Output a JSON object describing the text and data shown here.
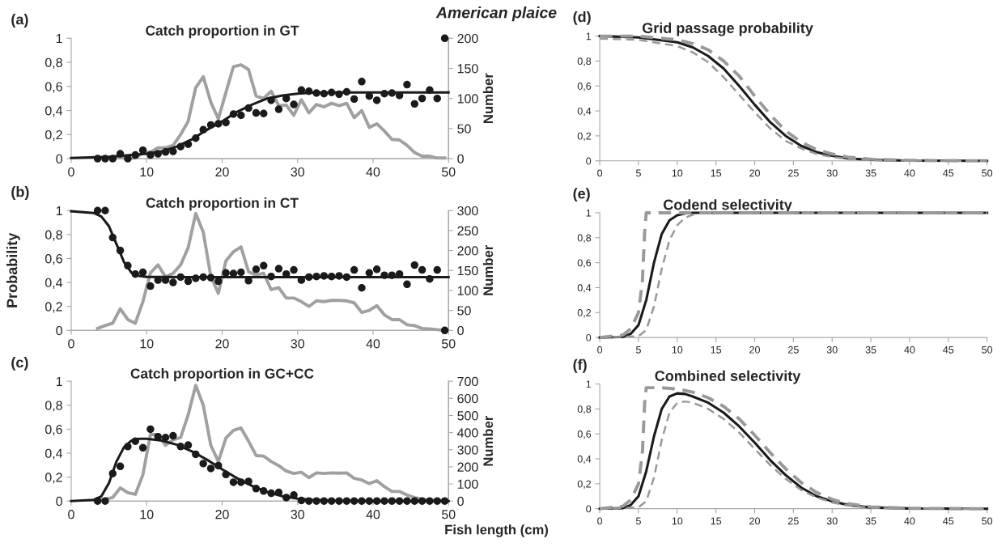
{
  "chart_data": [
    {
      "type": "scatter",
      "title": "Catch proportion in GT",
      "y2label": "Number",
      "annotations": [
        "(a)",
        "American plaice"
      ],
      "xlim": [
        0,
        50
      ],
      "xticks": [
        0,
        10,
        20,
        30,
        40,
        50
      ],
      "ylim": [
        0,
        1
      ],
      "yticks": [
        0,
        {
          "value": 0.2,
          "label": "0,2"
        },
        {
          "value": 0.4,
          "label": "0,4"
        },
        {
          "value": 0.6,
          "label": "0,6"
        },
        {
          "value": 0.8,
          "label": "0,8"
        },
        1
      ],
      "y2lim": [
        0,
        200
      ],
      "y2ticks": [
        0,
        50,
        100,
        150,
        200
      ],
      "grid": false,
      "legend": false,
      "series": [
        {
          "type": "line",
          "axis": "y2",
          "color": "#a0a0a0",
          "x": [
            5.5,
            6.5,
            7.5,
            8.5,
            9.5,
            10.5,
            11.5,
            12.5,
            13.5,
            14.5,
            15.5,
            16.5,
            17.5,
            18.5,
            19.5,
            20.5,
            21.5,
            22.5,
            23.5,
            24.5,
            25.5,
            26.5,
            27.5,
            28.5,
            29.5,
            30.5,
            31.5,
            32.5,
            33.5,
            34.5,
            35.5,
            36.5,
            37.5,
            38.5,
            39.5,
            40.5,
            41.5,
            42.5,
            43.5,
            44.5,
            45.5,
            46.5,
            47.5,
            48.5,
            49.5
          ],
          "values": [
            1,
            2,
            0,
            1,
            10,
            11,
            18,
            18,
            22,
            40,
            62,
            118,
            136,
            94,
            66,
            110,
            153,
            156,
            148,
            104,
            100,
            112,
            88,
            89,
            72,
            98,
            76,
            90,
            86,
            92,
            88,
            92,
            68,
            80,
            52,
            58,
            46,
            32,
            31,
            22,
            10,
            4,
            4,
            1,
            1
          ]
        },
        {
          "type": "line",
          "color": "#1a1a1a",
          "x": [
            0,
            5,
            10,
            12,
            14,
            16,
            18,
            20,
            22,
            24,
            26,
            28,
            30,
            32,
            35,
            40,
            50
          ],
          "values": [
            0.005,
            0.015,
            0.04,
            0.06,
            0.1,
            0.16,
            0.24,
            0.31,
            0.39,
            0.45,
            0.5,
            0.525,
            0.54,
            0.548,
            0.55,
            0.55,
            0.55
          ]
        },
        {
          "type": "scatter",
          "marker": "circle",
          "color": "#1a1a1a",
          "x": [
            3.5,
            4.5,
            5.5,
            6.5,
            7.5,
            8.5,
            9.5,
            10.5,
            11.5,
            12.5,
            13.5,
            14.5,
            15.5,
            16.5,
            17.5,
            18.5,
            19.5,
            20.5,
            21.5,
            22.5,
            23.5,
            24.5,
            25.5,
            26.5,
            27.5,
            28.5,
            29.5,
            30.5,
            31.5,
            32.5,
            33.5,
            34.5,
            35.5,
            36.5,
            37.5,
            38.5,
            39.5,
            40.5,
            41.5,
            42.5,
            43.5,
            44.5,
            45.5,
            46.5,
            47.5,
            48.5,
            49.5
          ],
          "values": [
            0,
            0,
            0,
            0.04,
            0,
            0.03,
            0.07,
            0.03,
            0.04,
            0.055,
            0.06,
            0.1,
            0.12,
            0.17,
            0.24,
            0.28,
            0.29,
            0.3,
            0.37,
            0.36,
            0.42,
            0.38,
            0.375,
            0.485,
            0.41,
            0.5,
            0.45,
            0.57,
            0.56,
            0.545,
            0.54,
            0.55,
            0.535,
            0.555,
            0.495,
            0.64,
            0.52,
            0.485,
            0.54,
            0.545,
            0.525,
            0.615,
            0.455,
            0.5,
            0.57,
            0.5,
            1
          ]
        }
      ]
    },
    {
      "type": "scatter",
      "title": "Catch proportion in CT",
      "ylabel": "Probability",
      "y2label": "Number",
      "annotations": [
        "(b)"
      ],
      "xlim": [
        0,
        50
      ],
      "xticks": [
        0,
        10,
        20,
        30,
        40,
        50
      ],
      "ylim": [
        0,
        1
      ],
      "yticks": [
        0,
        {
          "value": 0.2,
          "label": "0,2"
        },
        {
          "value": 0.4,
          "label": "0,4"
        },
        {
          "value": 0.6,
          "label": "0,6"
        },
        {
          "value": 0.8,
          "label": "0,8"
        },
        1
      ],
      "y2lim": [
        0,
        300
      ],
      "y2ticks": [
        0,
        50,
        100,
        150,
        200,
        250,
        300
      ],
      "grid": false,
      "legend": false,
      "series": [
        {
          "type": "line",
          "axis": "y2",
          "color": "#a0a0a0",
          "x": [
            3.5,
            4.5,
            5.5,
            6.5,
            7.5,
            8.5,
            9.5,
            10.5,
            11.5,
            12.5,
            13.5,
            14.5,
            15.5,
            16.5,
            17.5,
            18.5,
            19.5,
            20.5,
            21.5,
            22.5,
            23.5,
            24.5,
            25.5,
            26.5,
            27.5,
            28.5,
            29.5,
            30.5,
            31.5,
            32.5,
            33.5,
            34.5,
            35.5,
            36.5,
            37.5,
            38.5,
            39.5,
            40.5,
            41.5,
            42.5,
            43.5,
            44.5,
            45.5,
            46.5,
            47.5,
            48.5,
            49.5
          ],
          "values": [
            5,
            12,
            18,
            54,
            27,
            18,
            72,
            144,
            164,
            134,
            143,
            164,
            207,
            293,
            246,
            135,
            93,
            174,
            197,
            209,
            147,
            138,
            143,
            102,
            107,
            81,
            81,
            72,
            60,
            74,
            72,
            75,
            75,
            74,
            69,
            45,
            50,
            62,
            39,
            27,
            27,
            14,
            12,
            5,
            4,
            2,
            0
          ]
        },
        {
          "type": "line",
          "color": "#1a1a1a",
          "x": [
            0,
            3,
            4,
            5,
            6,
            7,
            8,
            9,
            10,
            15,
            50
          ],
          "values": [
            0.995,
            0.98,
            0.95,
            0.87,
            0.72,
            0.57,
            0.48,
            0.455,
            0.447,
            0.445,
            0.445
          ]
        },
        {
          "type": "scatter",
          "marker": "circle",
          "color": "#1a1a1a",
          "x": [
            3.5,
            4.5,
            5.5,
            6.5,
            7.5,
            8.5,
            9.5,
            10.5,
            11.5,
            12.5,
            13.5,
            14.5,
            15.5,
            16.5,
            17.5,
            18.5,
            19.5,
            20.5,
            21.5,
            22.5,
            23.5,
            24.5,
            25.5,
            26.5,
            27.5,
            28.5,
            29.5,
            30.5,
            31.5,
            32.5,
            33.5,
            34.5,
            35.5,
            36.5,
            37.5,
            38.5,
            39.5,
            40.5,
            41.5,
            42.5,
            43.5,
            44.5,
            45.5,
            46.5,
            47.5,
            48.5,
            49.5
          ],
          "values": [
            1,
            1,
            0.775,
            0.667,
            0.54,
            0.47,
            0.485,
            0.37,
            0.42,
            0.42,
            0.4,
            0.445,
            0.41,
            0.435,
            0.445,
            0.44,
            0.41,
            0.48,
            0.475,
            0.485,
            0.415,
            0.51,
            0.54,
            0.45,
            0.515,
            0.47,
            0.505,
            0.42,
            0.445,
            0.45,
            0.455,
            0.45,
            0.455,
            0.445,
            0.505,
            0.355,
            0.48,
            0.51,
            0.46,
            0.46,
            0.47,
            0.385,
            0.545,
            0.505,
            0.43,
            0.505,
            0
          ]
        }
      ]
    },
    {
      "type": "scatter",
      "title": "Catch proportion in GC+CC",
      "xlabel": "Fish length (cm)",
      "y2label": "Number",
      "annotations": [
        "(c)"
      ],
      "xlim": [
        0,
        50
      ],
      "xticks": [
        0,
        10,
        20,
        30,
        40,
        50
      ],
      "ylim": [
        0,
        1
      ],
      "yticks": [
        0,
        {
          "value": 0.2,
          "label": "0,2"
        },
        {
          "value": 0.4,
          "label": "0,4"
        },
        {
          "value": 0.6,
          "label": "0,6"
        },
        {
          "value": 0.8,
          "label": "0,8"
        },
        1
      ],
      "y2lim": [
        0,
        700
      ],
      "y2ticks": [
        0,
        100,
        200,
        300,
        400,
        500,
        600,
        700
      ],
      "grid": false,
      "legend": false,
      "series": [
        {
          "type": "line",
          "axis": "y2",
          "color": "#a0a0a0",
          "x": [
            3.5,
            4.5,
            5.5,
            6.5,
            7.5,
            8.5,
            9.5,
            10.5,
            11.5,
            12.5,
            13.5,
            14.5,
            15.5,
            16.5,
            17.5,
            18.5,
            19.5,
            20.5,
            21.5,
            22.5,
            23.5,
            24.5,
            25.5,
            26.5,
            27.5,
            28.5,
            29.5,
            30.5,
            31.5,
            32.5,
            33.5,
            34.5,
            35.5,
            36.5,
            37.5,
            38.5,
            39.5,
            40.5,
            41.5,
            42.5,
            43.5,
            44.5,
            45.5,
            46.5,
            47.5,
            48.5,
            49.5
          ],
          "values": [
            4,
            11,
            21,
            77,
            49,
            39,
            154,
            389,
            389,
            326,
            357,
            371,
            504,
            676,
            560,
            326,
            231,
            368,
            413,
            427,
            350,
            266,
            263,
            231,
            207,
            175,
            161,
            168,
            137,
            165,
            161,
            165,
            163,
            165,
            133,
            123,
            102,
            119,
            84,
            56,
            56,
            35,
            21,
            11,
            4,
            4,
            2
          ]
        },
        {
          "type": "line",
          "color": "#1a1a1a",
          "x": [
            0,
            3,
            4,
            5,
            6,
            7,
            8,
            9,
            10,
            12,
            14,
            16,
            18,
            20,
            22,
            24,
            26,
            28,
            30,
            32,
            35,
            40,
            50
          ],
          "values": [
            0,
            0.01,
            0.04,
            0.15,
            0.33,
            0.45,
            0.505,
            0.52,
            0.52,
            0.505,
            0.47,
            0.415,
            0.345,
            0.265,
            0.19,
            0.125,
            0.075,
            0.04,
            0.02,
            0.01,
            0.003,
            0,
            0
          ]
        },
        {
          "type": "scatter",
          "marker": "circle",
          "color": "#1a1a1a",
          "x": [
            3.5,
            4.5,
            5.5,
            6.5,
            7.5,
            8.5,
            9.5,
            10.5,
            11.5,
            12.5,
            13.5,
            14.5,
            15.5,
            16.5,
            17.5,
            18.5,
            19.5,
            20.5,
            21.5,
            22.5,
            23.5,
            24.5,
            25.5,
            26.5,
            27.5,
            28.5,
            29.5,
            30.5,
            31.5,
            32.5,
            33.5,
            34.5,
            35.5,
            36.5,
            37.5,
            38.5,
            39.5,
            40.5,
            41.5,
            42.5,
            43.5,
            44.5,
            45.5,
            46.5,
            47.5,
            48.5,
            49.5
          ],
          "values": [
            0,
            0,
            0.23,
            0.29,
            0.455,
            0.5,
            0.445,
            0.6,
            0.537,
            0.53,
            0.545,
            0.455,
            0.467,
            0.39,
            0.313,
            0.272,
            0.296,
            0.222,
            0.157,
            0.157,
            0.164,
            0.104,
            0.084,
            0.065,
            0.072,
            0.029,
            0.05,
            0.005,
            0,
            0,
            0,
            0,
            0,
            0,
            0,
            0,
            0,
            0,
            0,
            0,
            0,
            0,
            0,
            0,
            0,
            0,
            0
          ]
        }
      ]
    },
    {
      "type": "line",
      "title": "Grid passage probability",
      "annotations": [
        "(d)"
      ],
      "xlim": [
        0,
        50
      ],
      "xticks": [
        0,
        5,
        10,
        15,
        20,
        25,
        30,
        35,
        40,
        45,
        50
      ],
      "ylim": [
        0,
        1
      ],
      "yticks": [
        0,
        {
          "value": 0.2,
          "label": "0,2"
        },
        {
          "value": 0.4,
          "label": "0,4"
        },
        {
          "value": 0.6,
          "label": "0,6"
        },
        {
          "value": 0.8,
          "label": "0,8"
        },
        1
      ],
      "grid": false,
      "legend": false,
      "series": [
        {
          "color": "#999999",
          "line_style": "dashed",
          "x": [
            0,
            5,
            10,
            12,
            14,
            16,
            18,
            20,
            22,
            24,
            26,
            28,
            30,
            32,
            35,
            40,
            50
          ],
          "values": [
            1,
            1,
            0.97,
            0.94,
            0.89,
            0.8,
            0.68,
            0.52,
            0.37,
            0.24,
            0.15,
            0.09,
            0.055,
            0.03,
            0.013,
            0.004,
            0
          ]
        },
        {
          "color": "#999999",
          "line_style": "dashed",
          "x": [
            0,
            5,
            10,
            12,
            14,
            16,
            18,
            20,
            22,
            24,
            26,
            28,
            30,
            32,
            35,
            40,
            50
          ],
          "values": [
            0.98,
            0.97,
            0.92,
            0.87,
            0.79,
            0.67,
            0.53,
            0.39,
            0.26,
            0.16,
            0.1,
            0.055,
            0.03,
            0.015,
            0.005,
            0.001,
            0
          ]
        },
        {
          "color": "#1a1a1a",
          "line_style": "solid",
          "x": [
            0,
            5,
            10,
            12,
            14,
            16,
            18,
            20,
            22,
            24,
            26,
            28,
            30,
            32,
            35,
            40,
            50
          ],
          "values": [
            1,
            0.99,
            0.95,
            0.91,
            0.84,
            0.74,
            0.6,
            0.45,
            0.31,
            0.2,
            0.12,
            0.07,
            0.04,
            0.02,
            0.008,
            0.002,
            0
          ]
        }
      ]
    },
    {
      "type": "line",
      "title": "Codend selectivity",
      "annotations": [
        "(e)"
      ],
      "xlim": [
        0,
        50
      ],
      "xticks": [
        0,
        5,
        10,
        15,
        20,
        25,
        30,
        35,
        40,
        45,
        50
      ],
      "ylim": [
        0,
        1
      ],
      "yticks": [
        0,
        {
          "value": 0.2,
          "label": "0,2"
        },
        {
          "value": 0.4,
          "label": "0,4"
        },
        {
          "value": 0.6,
          "label": "0,6"
        },
        {
          "value": 0.8,
          "label": "0,8"
        },
        1
      ],
      "grid": false,
      "legend": false,
      "series": [
        {
          "color": "#999999",
          "line_style": "dashed",
          "x": [
            0,
            3,
            4,
            5,
            5.5,
            5.8,
            6,
            50
          ],
          "values": [
            0,
            0.02,
            0.07,
            0.2,
            0.45,
            0.85,
            1,
            1
          ]
        },
        {
          "color": "#999999",
          "line_style": "dashed",
          "x": [
            0,
            5,
            6,
            7,
            8,
            9,
            10,
            11,
            12,
            13,
            15,
            50
          ],
          "values": [
            0,
            0.01,
            0.06,
            0.25,
            0.55,
            0.78,
            0.9,
            0.96,
            0.985,
            0.995,
            1,
            1
          ]
        },
        {
          "color": "#1a1a1a",
          "line_style": "solid",
          "x": [
            0,
            3,
            4,
            5,
            6,
            7,
            8,
            9,
            10,
            11,
            12,
            50
          ],
          "values": [
            0,
            0.005,
            0.03,
            0.1,
            0.3,
            0.6,
            0.83,
            0.94,
            0.98,
            0.995,
            1,
            1
          ]
        }
      ]
    },
    {
      "type": "line",
      "title": "Combined selectivity",
      "annotations": [
        "(f)"
      ],
      "xlim": [
        0,
        50
      ],
      "xticks": [
        0,
        5,
        10,
        15,
        20,
        25,
        30,
        35,
        40,
        45,
        50
      ],
      "ylim": [
        0,
        1
      ],
      "yticks": [
        0,
        {
          "value": 0.2,
          "label": "0,2"
        },
        {
          "value": 0.4,
          "label": "0,4"
        },
        {
          "value": 0.6,
          "label": "0,6"
        },
        {
          "value": 0.8,
          "label": "0,8"
        },
        1
      ],
      "grid": false,
      "legend": false,
      "series": [
        {
          "color": "#999999",
          "line_style": "dashed",
          "x": [
            0,
            3,
            4,
            5,
            5.5,
            5.8,
            6,
            8,
            10,
            12,
            14,
            16,
            18,
            20,
            22,
            24,
            26,
            28,
            30,
            32,
            35,
            40,
            50
          ],
          "values": [
            0,
            0.02,
            0.07,
            0.2,
            0.45,
            0.85,
            0.97,
            0.97,
            0.96,
            0.935,
            0.89,
            0.82,
            0.72,
            0.59,
            0.45,
            0.32,
            0.21,
            0.13,
            0.075,
            0.04,
            0.015,
            0.003,
            0
          ]
        },
        {
          "color": "#999999",
          "line_style": "dashed",
          "x": [
            0,
            5,
            6,
            7,
            8,
            9,
            10,
            11,
            12,
            14,
            16,
            18,
            20,
            22,
            24,
            26,
            28,
            30,
            32,
            35,
            40,
            50
          ],
          "values": [
            0,
            0.01,
            0.06,
            0.25,
            0.55,
            0.77,
            0.85,
            0.86,
            0.85,
            0.8,
            0.72,
            0.61,
            0.48,
            0.35,
            0.24,
            0.15,
            0.09,
            0.05,
            0.025,
            0.008,
            0.001,
            0
          ]
        },
        {
          "color": "#1a1a1a",
          "line_style": "solid",
          "x": [
            0,
            3,
            4,
            5,
            6,
            7,
            8,
            9,
            10,
            11,
            12,
            14,
            16,
            18,
            20,
            22,
            24,
            26,
            28,
            30,
            32,
            35,
            40,
            50
          ],
          "values": [
            0,
            0.005,
            0.03,
            0.1,
            0.3,
            0.58,
            0.8,
            0.9,
            0.925,
            0.92,
            0.9,
            0.85,
            0.77,
            0.66,
            0.53,
            0.39,
            0.27,
            0.17,
            0.1,
            0.06,
            0.03,
            0.01,
            0.002,
            0
          ]
        }
      ]
    }
  ]
}
